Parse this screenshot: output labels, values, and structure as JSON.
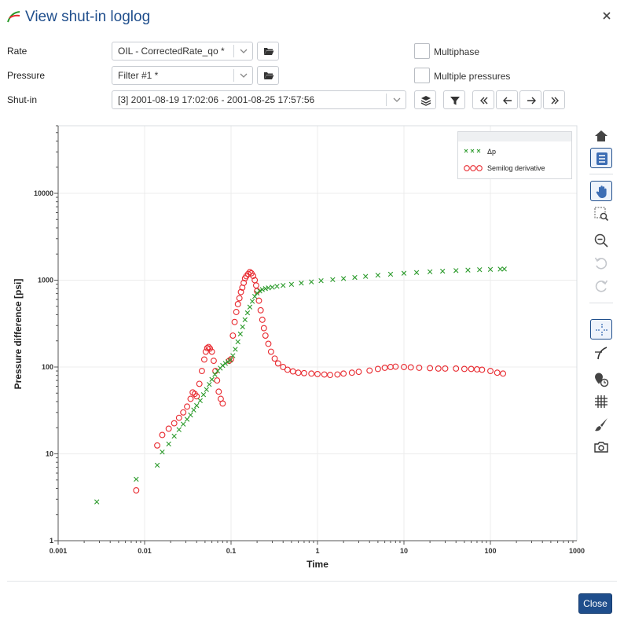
{
  "window": {
    "title": "View shut-in loglog",
    "close_icon": "close-icon",
    "title_icon": "loglog-curve-icon"
  },
  "form": {
    "rate": {
      "label": "Rate",
      "value": "OIL - CorrectedRate_qo *"
    },
    "pressure": {
      "label": "Pressure",
      "value": "Filter #1 *"
    },
    "shutin": {
      "label": "Shut-in",
      "value": "[3] 2001-08-19 17:02:06 - 2001-08-25 17:57:56"
    },
    "multiphase": {
      "label": "Multiphase",
      "checked": false
    },
    "multiple_pressures": {
      "label": "Multiple pressures",
      "checked": false
    }
  },
  "toolbar_icons": [
    "folder-open-icon",
    "layers-icon",
    "filter-icon",
    "first-icon",
    "prev-icon",
    "next-icon",
    "last-icon"
  ],
  "side_tools": [
    "home-icon",
    "legend-list-icon",
    "pan-hand-icon",
    "box-zoom-icon",
    "zoom-out-icon",
    "undo-icon",
    "redo-icon",
    "crosshair-icon",
    "tangent-icon",
    "point-time-icon",
    "grid-icon",
    "brush-icon",
    "camera-icon"
  ],
  "footer": {
    "close_label": "Close"
  },
  "colors": {
    "accent": "#1f4e8c",
    "dp": "#2a9a2a",
    "deriv": "#e8282e"
  },
  "chart_data": {
    "type": "scatter",
    "x_scale": "log",
    "y_scale": "log",
    "xlabel": "Time",
    "ylabel": "Pressure difference [psi]",
    "xlim": [
      0.001,
      1000
    ],
    "ylim": [
      1,
      60000
    ],
    "grid": true,
    "legend_position": "top-right",
    "x_ticks": [
      "0.001",
      "0.01",
      "0.1",
      "1",
      "10",
      "100",
      "1000"
    ],
    "y_ticks": [
      "1",
      "10",
      "100",
      "1000",
      "10000"
    ],
    "series": [
      {
        "name": "Δp",
        "marker": "x",
        "x": [
          0.0028,
          0.008,
          0.014,
          0.016,
          0.019,
          0.022,
          0.025,
          0.028,
          0.031,
          0.034,
          0.037,
          0.04,
          0.044,
          0.048,
          0.052,
          0.056,
          0.06,
          0.065,
          0.07,
          0.075,
          0.08,
          0.086,
          0.092,
          0.098,
          0.105,
          0.112,
          0.12,
          0.128,
          0.136,
          0.145,
          0.155,
          0.165,
          0.176,
          0.188,
          0.2,
          0.215,
          0.23,
          0.25,
          0.27,
          0.3,
          0.34,
          0.4,
          0.5,
          0.65,
          0.85,
          1.1,
          1.5,
          2,
          2.7,
          3.6,
          5,
          7,
          10,
          14,
          20,
          28,
          40,
          55,
          75,
          100,
          130,
          145
        ],
        "y": [
          2.8,
          5.1,
          7.4,
          10.5,
          13,
          16,
          19,
          22,
          25,
          28,
          32,
          36,
          41,
          48,
          55,
          63,
          72,
          82,
          90,
          97,
          104,
          110,
          115,
          120,
          135,
          160,
          195,
          240,
          290,
          350,
          420,
          490,
          570,
          650,
          710,
          750,
          780,
          800,
          815,
          830,
          850,
          870,
          895,
          925,
          955,
          985,
          1015,
          1045,
          1075,
          1105,
          1140,
          1170,
          1200,
          1225,
          1250,
          1270,
          1290,
          1305,
          1320,
          1330,
          1340,
          1345
        ]
      },
      {
        "name": "Semilog derivative",
        "marker": "o",
        "x": [
          0.008,
          0.014,
          0.016,
          0.019,
          0.022,
          0.025,
          0.028,
          0.031,
          0.034,
          0.036,
          0.038,
          0.04,
          0.043,
          0.046,
          0.049,
          0.051,
          0.053,
          0.055,
          0.057,
          0.06,
          0.063,
          0.066,
          0.069,
          0.072,
          0.076,
          0.08,
          0.095,
          0.1,
          0.105,
          0.11,
          0.115,
          0.12,
          0.125,
          0.13,
          0.135,
          0.14,
          0.145,
          0.15,
          0.158,
          0.165,
          0.172,
          0.18,
          0.188,
          0.195,
          0.2,
          0.21,
          0.22,
          0.23,
          0.24,
          0.25,
          0.27,
          0.29,
          0.32,
          0.35,
          0.4,
          0.45,
          0.52,
          0.6,
          0.7,
          0.85,
          1,
          1.2,
          1.4,
          1.7,
          2,
          2.5,
          3,
          4,
          5,
          6,
          7,
          8,
          10,
          12,
          15,
          20,
          25,
          30,
          40,
          50,
          60,
          70,
          80,
          100,
          120,
          140
        ],
        "y": [
          3.8,
          12.5,
          16.5,
          19.5,
          22.5,
          26,
          30,
          35,
          43,
          51,
          49,
          46,
          64,
          90,
          122,
          150,
          165,
          170,
          163,
          150,
          118,
          90,
          70,
          52,
          43,
          38,
          118,
          123,
          230,
          330,
          430,
          530,
          620,
          730,
          820,
          930,
          1050,
          1110,
          1180,
          1240,
          1200,
          1120,
          1000,
          870,
          750,
          580,
          450,
          350,
          280,
          230,
          185,
          150,
          125,
          110,
          100,
          93,
          89,
          86,
          85,
          84,
          83,
          82,
          81,
          82,
          84,
          86,
          88,
          91,
          95,
          98,
          100,
          101,
          100,
          99,
          98,
          97,
          96,
          96,
          96,
          95,
          95,
          94,
          93,
          90,
          86,
          84
        ]
      }
    ]
  }
}
